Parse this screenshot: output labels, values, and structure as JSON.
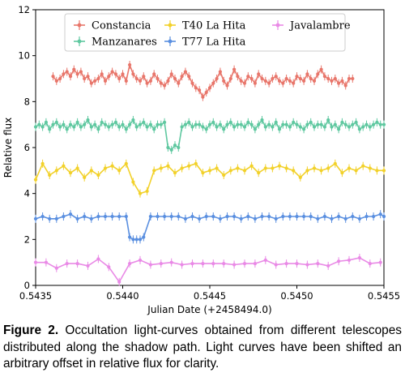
{
  "chart_data": {
    "type": "line",
    "xlabel": "Julian Date (+2458494.0)",
    "ylabel": "Relative flux",
    "xlim": [
      0.5435,
      0.5455
    ],
    "ylim": [
      0,
      12
    ],
    "xticks": [
      "0.5435",
      "0.5440",
      "0.5445",
      "0.5450",
      "0.5455"
    ],
    "yticks": [
      "0",
      "2",
      "4",
      "6",
      "8",
      "10",
      "12"
    ],
    "legend_position": "top",
    "series": [
      {
        "name": "Constancia",
        "color": "#e8766b",
        "error_bars": true,
        "x": [
          0.5436,
          0.54362,
          0.54364,
          0.54366,
          0.54368,
          0.5437,
          0.54372,
          0.54374,
          0.54376,
          0.54378,
          0.5438,
          0.54382,
          0.54384,
          0.54386,
          0.54388,
          0.5439,
          0.54392,
          0.54394,
          0.54396,
          0.54398,
          0.544,
          0.54402,
          0.54404,
          0.54406,
          0.54408,
          0.5441,
          0.54412,
          0.54414,
          0.54416,
          0.54418,
          0.5442,
          0.54422,
          0.54424,
          0.54426,
          0.54428,
          0.5443,
          0.54432,
          0.54434,
          0.54436,
          0.54438,
          0.5444,
          0.54442,
          0.54444,
          0.54446,
          0.54448,
          0.5445,
          0.54452,
          0.54454,
          0.54456,
          0.54458,
          0.5446,
          0.54462,
          0.54464,
          0.54466,
          0.54468,
          0.5447,
          0.54472,
          0.54474,
          0.54476,
          0.54478,
          0.5448,
          0.54482,
          0.54484,
          0.54486,
          0.54488,
          0.5449,
          0.54492,
          0.54494,
          0.54496,
          0.54498,
          0.545,
          0.54502,
          0.54504,
          0.54506,
          0.54508,
          0.5451,
          0.54512,
          0.54514,
          0.54516,
          0.54518,
          0.5452,
          0.54522,
          0.54524,
          0.54526,
          0.54528,
          0.5453,
          0.54532
        ],
        "y": [
          9.1,
          8.9,
          9.0,
          9.2,
          9.3,
          9.1,
          9.4,
          9.2,
          9.3,
          9.0,
          9.1,
          8.8,
          8.9,
          9.0,
          9.2,
          8.9,
          9.1,
          9.3,
          9.2,
          9.0,
          9.2,
          8.9,
          9.6,
          9.2,
          9.0,
          8.9,
          9.1,
          8.8,
          8.9,
          9.2,
          9.0,
          8.8,
          8.7,
          8.9,
          9.2,
          9.0,
          8.8,
          9.1,
          9.3,
          9.1,
          8.8,
          8.6,
          8.5,
          8.2,
          8.4,
          8.6,
          8.8,
          9.0,
          9.3,
          8.9,
          8.7,
          9.0,
          9.4,
          9.1,
          8.9,
          8.8,
          9.1,
          9.0,
          8.8,
          9.2,
          9.0,
          8.9,
          8.8,
          9.0,
          9.1,
          8.9,
          8.8,
          9.0,
          8.9,
          8.8,
          9.1,
          9.0,
          8.9,
          9.2,
          9.0,
          8.9,
          9.2,
          9.4,
          9.1,
          9.0,
          8.9,
          9.0,
          8.8,
          8.9,
          8.7,
          9.0,
          9.0
        ]
      },
      {
        "name": "Manzanares",
        "color": "#5fc8a0",
        "error_bars": true,
        "x": [
          0.5435,
          0.54352,
          0.54354,
          0.54356,
          0.54358,
          0.5436,
          0.54362,
          0.54364,
          0.54366,
          0.54368,
          0.5437,
          0.54372,
          0.54374,
          0.54376,
          0.54378,
          0.5438,
          0.54382,
          0.54384,
          0.54386,
          0.54388,
          0.5439,
          0.54392,
          0.54394,
          0.54396,
          0.54398,
          0.544,
          0.54402,
          0.54404,
          0.54406,
          0.54408,
          0.5441,
          0.54412,
          0.54414,
          0.54416,
          0.54418,
          0.5442,
          0.54422,
          0.54424,
          0.54426,
          0.54428,
          0.5443,
          0.54432,
          0.54434,
          0.54436,
          0.54438,
          0.5444,
          0.54442,
          0.54444,
          0.54446,
          0.54448,
          0.5445,
          0.54452,
          0.54454,
          0.54456,
          0.54458,
          0.5446,
          0.54462,
          0.54464,
          0.54466,
          0.54468,
          0.5447,
          0.54472,
          0.54474,
          0.54476,
          0.54478,
          0.5448,
          0.54482,
          0.54484,
          0.54486,
          0.54488,
          0.5449,
          0.54492,
          0.54494,
          0.54496,
          0.54498,
          0.545,
          0.54502,
          0.54504,
          0.54506,
          0.54508,
          0.5451,
          0.54512,
          0.54514,
          0.54516,
          0.54518,
          0.5452,
          0.54522,
          0.54524,
          0.54526,
          0.54528,
          0.5453,
          0.54532,
          0.54534,
          0.54536,
          0.54538,
          0.5454,
          0.54542,
          0.54544,
          0.54546,
          0.54548,
          0.5455
        ],
        "y": [
          6.9,
          7.0,
          6.9,
          7.1,
          6.8,
          7.0,
          7.1,
          6.9,
          7.0,
          6.8,
          7.0,
          6.9,
          7.1,
          6.9,
          7.0,
          7.2,
          6.9,
          7.0,
          6.8,
          7.1,
          7.0,
          6.9,
          7.0,
          7.1,
          6.9,
          7.0,
          6.8,
          7.0,
          7.2,
          6.9,
          7.0,
          7.1,
          6.9,
          7.0,
          6.8,
          7.0,
          7.0,
          7.1,
          6.0,
          5.9,
          6.1,
          6.0,
          6.9,
          7.0,
          7.1,
          6.9,
          7.0,
          7.0,
          6.9,
          6.8,
          7.0,
          7.1,
          6.9,
          7.0,
          6.8,
          7.0,
          7.1,
          6.9,
          7.0,
          7.0,
          6.9,
          7.1,
          7.0,
          6.8,
          7.0,
          7.2,
          6.9,
          7.0,
          6.9,
          7.1,
          6.8,
          7.0,
          7.0,
          6.9,
          7.1,
          7.0,
          6.9,
          6.8,
          7.0,
          7.1,
          6.9,
          7.0,
          7.0,
          6.9,
          7.2,
          6.9,
          7.0,
          6.8,
          7.1,
          7.0,
          6.9,
          7.0,
          7.1,
          6.8,
          6.9,
          7.0,
          6.9,
          7.0,
          7.1,
          7.0,
          7.0
        ]
      },
      {
        "name": "T40 La Hita",
        "color": "#f2d12a",
        "error_bars": true,
        "x": [
          0.5435,
          0.54354,
          0.54358,
          0.54362,
          0.54366,
          0.5437,
          0.54374,
          0.54378,
          0.54382,
          0.54386,
          0.5439,
          0.54394,
          0.54398,
          0.54402,
          0.54406,
          0.5441,
          0.54414,
          0.54418,
          0.54422,
          0.54426,
          0.5443,
          0.54434,
          0.54438,
          0.54442,
          0.54446,
          0.5445,
          0.54454,
          0.54458,
          0.54462,
          0.54466,
          0.5447,
          0.54474,
          0.54478,
          0.54482,
          0.54486,
          0.5449,
          0.54494,
          0.54498,
          0.54502,
          0.54506,
          0.5451,
          0.54514,
          0.54518,
          0.54522,
          0.54526,
          0.5453,
          0.54534,
          0.54538,
          0.54542,
          0.54546,
          0.5455
        ],
        "y": [
          4.6,
          5.3,
          4.8,
          5.0,
          5.2,
          4.9,
          5.1,
          4.7,
          5.0,
          4.8,
          5.1,
          5.2,
          5.0,
          5.3,
          4.5,
          4.0,
          4.1,
          5.0,
          5.1,
          5.2,
          4.9,
          5.1,
          5.2,
          5.3,
          4.9,
          5.0,
          5.1,
          4.8,
          5.0,
          5.1,
          5.0,
          5.2,
          4.9,
          5.1,
          5.1,
          5.2,
          5.1,
          5.0,
          4.7,
          5.0,
          5.1,
          5.0,
          5.1,
          5.3,
          4.9,
          5.1,
          5.0,
          5.2,
          5.1,
          5.0,
          5.0
        ]
      },
      {
        "name": "T77 La Hita",
        "color": "#5a8fe0",
        "error_bars": true,
        "x": [
          0.5435,
          0.54354,
          0.54358,
          0.54362,
          0.54366,
          0.5437,
          0.54374,
          0.54378,
          0.54382,
          0.54386,
          0.5439,
          0.54394,
          0.54398,
          0.54402,
          0.54404,
          0.54406,
          0.54408,
          0.5441,
          0.54412,
          0.54416,
          0.5442,
          0.54424,
          0.54428,
          0.54432,
          0.54436,
          0.5444,
          0.54444,
          0.54448,
          0.54452,
          0.54456,
          0.5446,
          0.54464,
          0.54468,
          0.54472,
          0.54476,
          0.5448,
          0.54484,
          0.54488,
          0.54492,
          0.54496,
          0.545,
          0.54504,
          0.54508,
          0.54512,
          0.54516,
          0.5452,
          0.54524,
          0.54528,
          0.54532,
          0.54536,
          0.5454,
          0.54544,
          0.54548,
          0.5455
        ],
        "y": [
          2.9,
          3.0,
          2.9,
          2.9,
          3.0,
          3.1,
          2.9,
          3.0,
          2.9,
          3.0,
          3.0,
          3.0,
          3.0,
          3.0,
          2.1,
          2.0,
          2.0,
          2.0,
          2.1,
          3.0,
          3.0,
          3.0,
          3.0,
          3.0,
          2.9,
          3.0,
          2.9,
          3.0,
          3.0,
          2.9,
          3.0,
          3.0,
          2.9,
          3.0,
          2.9,
          3.0,
          3.0,
          2.9,
          3.0,
          3.0,
          3.0,
          3.0,
          3.0,
          2.9,
          3.0,
          2.9,
          3.0,
          2.9,
          3.0,
          2.9,
          3.0,
          3.0,
          3.1,
          3.0
        ]
      },
      {
        "name": "Javalambre",
        "color": "#e98ae6",
        "error_bars": true,
        "x": [
          0.5435,
          0.54356,
          0.54362,
          0.54368,
          0.54374,
          0.5438,
          0.54386,
          0.54392,
          0.54398,
          0.54404,
          0.5441,
          0.54416,
          0.54422,
          0.54428,
          0.54434,
          0.5444,
          0.54446,
          0.54452,
          0.54458,
          0.54464,
          0.5447,
          0.54476,
          0.54482,
          0.54488,
          0.54494,
          0.545,
          0.54506,
          0.54512,
          0.54518,
          0.54524,
          0.5453,
          0.54536,
          0.54542,
          0.54548
        ],
        "y": [
          1.0,
          1.0,
          0.75,
          0.95,
          0.95,
          0.85,
          1.15,
          0.8,
          0.15,
          0.95,
          1.1,
          0.9,
          0.95,
          1.0,
          0.9,
          0.95,
          0.95,
          0.95,
          0.95,
          0.9,
          0.95,
          0.95,
          1.1,
          0.9,
          0.95,
          0.95,
          0.9,
          0.95,
          0.85,
          1.05,
          1.1,
          1.2,
          0.95,
          1.0
        ]
      }
    ]
  },
  "caption": {
    "label": "Figure 2.",
    "text": " Occultation light-curves obtained from different telescopes distributed along the shadow path. Light curves have been shifted an arbitrary offset in relative flux for clarity."
  }
}
